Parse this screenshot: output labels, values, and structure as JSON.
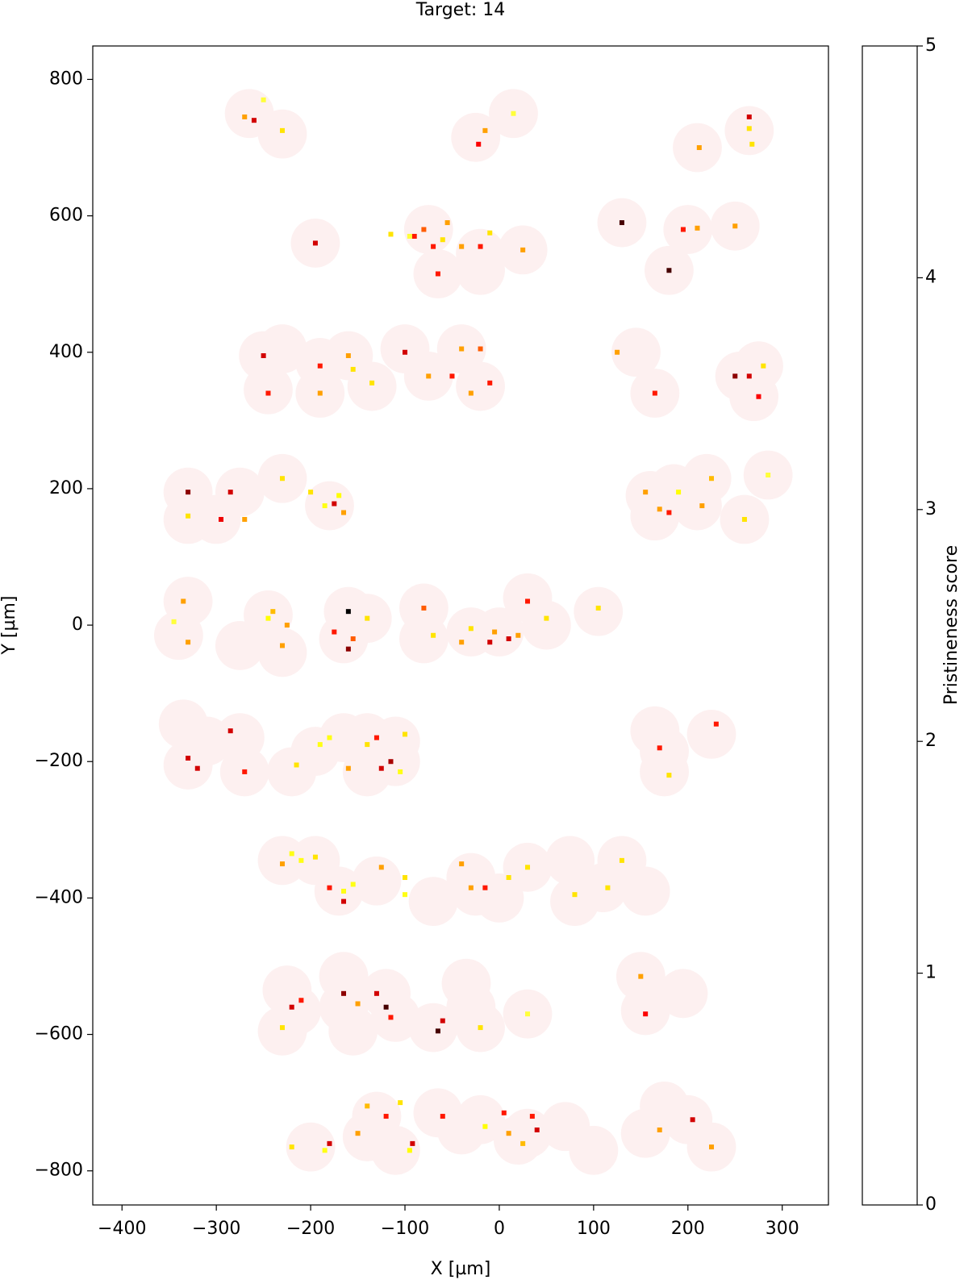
{
  "chart_data": {
    "type": "scatter",
    "title": "Target: 14",
    "x_label": "X [µm]",
    "y_label": "Y [µm]",
    "xlim": [
      -431,
      349
    ],
    "ylim": [
      -850,
      849
    ],
    "xticks": [
      {
        "value": -400,
        "label": "−400"
      },
      {
        "value": -300,
        "label": "−300"
      },
      {
        "value": -200,
        "label": "−200"
      },
      {
        "value": -100,
        "label": "−100"
      },
      0,
      100,
      200,
      300
    ],
    "yticks": [
      {
        "value": -800,
        "label": "−800"
      },
      {
        "value": -600,
        "label": "−600"
      },
      {
        "value": -400,
        "label": "−400"
      },
      {
        "value": -200,
        "label": "−200"
      },
      0,
      200,
      400,
      600,
      800
    ],
    "colorbar": {
      "label": "Pristineness score",
      "colormap": "hot_r",
      "clim": [
        0,
        5
      ],
      "ticks": [
        0,
        1,
        2,
        3,
        4,
        5
      ]
    },
    "regions": {
      "color": "#fdf0f0",
      "radius": 26,
      "x": [
        -265,
        -230,
        -25,
        15,
        210,
        265,
        -195,
        -75,
        -65,
        -20,
        -20,
        25,
        130,
        180,
        200,
        250,
        -250,
        -230,
        -245,
        -190,
        -190,
        -160,
        -135,
        -100,
        -75,
        -40,
        -20,
        145,
        165,
        255,
        275,
        270,
        -330,
        -330,
        -300,
        -275,
        -230,
        -180,
        160,
        165,
        185,
        210,
        220,
        260,
        285,
        -330,
        -340,
        -275,
        -245,
        -230,
        -160,
        -165,
        -140,
        -80,
        -80,
        -30,
        0,
        30,
        50,
        105,
        -335,
        -330,
        -310,
        -275,
        -270,
        -220,
        -195,
        -165,
        -140,
        -140,
        -110,
        -110,
        165,
        175,
        175,
        225,
        -230,
        -195,
        -170,
        -130,
        -70,
        -30,
        -25,
        0,
        30,
        75,
        80,
        110,
        130,
        155,
        -225,
        -215,
        -230,
        -165,
        -165,
        -155,
        -120,
        -110,
        -70,
        -35,
        -30,
        -20,
        30,
        150,
        155,
        195,
        -200,
        -140,
        -130,
        -110,
        -65,
        -40,
        -20,
        20,
        30,
        70,
        100,
        155,
        175,
        200,
        225
      ],
      "y": [
        750,
        720,
        715,
        750,
        700,
        725,
        560,
        580,
        515,
        545,
        520,
        550,
        590,
        520,
        580,
        585,
        395,
        405,
        345,
        385,
        340,
        395,
        350,
        405,
        365,
        405,
        350,
        400,
        340,
        365,
        380,
        335,
        195,
        155,
        155,
        195,
        215,
        175,
        190,
        160,
        200,
        175,
        215,
        155,
        220,
        35,
        -15,
        -30,
        15,
        -40,
        20,
        -20,
        10,
        25,
        -20,
        -10,
        -10,
        40,
        0,
        20,
        -145,
        -205,
        -170,
        -165,
        -215,
        -215,
        -185,
        -165,
        -165,
        -215,
        -200,
        -170,
        -155,
        -185,
        -215,
        -160,
        -345,
        -345,
        -390,
        -375,
        -405,
        -370,
        -390,
        -400,
        -355,
        -345,
        -405,
        -385,
        -345,
        -390,
        -535,
        -565,
        -595,
        -515,
        -560,
        -595,
        -540,
        -575,
        -590,
        -525,
        -560,
        -590,
        -570,
        -515,
        -565,
        -540,
        -765,
        -750,
        -720,
        -770,
        -715,
        -740,
        -725,
        -755,
        -745,
        -735,
        -770,
        -745,
        -705,
        -725,
        -765
      ]
    },
    "points": {
      "x": [
        -270,
        -260,
        -250,
        -230,
        -22,
        -15,
        15,
        212,
        265,
        265,
        268,
        -195,
        -90,
        -70,
        -80,
        -60,
        -55,
        -95,
        -115,
        -65,
        -40,
        -20,
        -10,
        25,
        130,
        180,
        195,
        210,
        250,
        -250,
        -245,
        -190,
        -190,
        -160,
        -155,
        -135,
        -100,
        -75,
        -50,
        -30,
        -40,
        -20,
        -10,
        125,
        165,
        250,
        265,
        275,
        280,
        -330,
        -330,
        -295,
        -285,
        -270,
        -230,
        -200,
        -185,
        -175,
        -170,
        -165,
        155,
        170,
        180,
        190,
        215,
        225,
        260,
        285,
        -335,
        -345,
        -330,
        -245,
        -240,
        -230,
        -225,
        -160,
        -175,
        -155,
        -160,
        -140,
        -80,
        -70,
        -40,
        -30,
        -10,
        -5,
        10,
        20,
        30,
        50,
        105,
        -330,
        -320,
        -285,
        -270,
        -215,
        -190,
        -180,
        -160,
        -140,
        -130,
        -125,
        -115,
        -105,
        -100,
        170,
        180,
        230,
        -230,
        -220,
        -210,
        -195,
        -180,
        -165,
        -155,
        -165,
        -125,
        -100,
        -100,
        -40,
        -30,
        -15,
        10,
        30,
        80,
        115,
        130,
        -220,
        -210,
        -230,
        -165,
        -150,
        -130,
        -120,
        -115,
        -65,
        -60,
        -20,
        30,
        150,
        155,
        -220,
        -185,
        -180,
        -150,
        -140,
        -120,
        -105,
        -95,
        -92,
        -60,
        -15,
        5,
        10,
        25,
        35,
        40,
        170,
        205,
        225
      ],
      "y": [
        745,
        740,
        770,
        725,
        705,
        725,
        750,
        700,
        745,
        728,
        705,
        560,
        570,
        555,
        580,
        565,
        590,
        570,
        573,
        515,
        555,
        555,
        575,
        550,
        590,
        520,
        580,
        582,
        585,
        395,
        340,
        380,
        340,
        395,
        375,
        355,
        400,
        365,
        365,
        340,
        405,
        405,
        355,
        400,
        340,
        365,
        365,
        335,
        380,
        195,
        160,
        155,
        195,
        155,
        215,
        195,
        175,
        178,
        190,
        165,
        195,
        170,
        165,
        195,
        175,
        215,
        155,
        220,
        35,
        5,
        -25,
        10,
        20,
        -30,
        0,
        20,
        -10,
        -20,
        -35,
        10,
        25,
        -15,
        -25,
        -5,
        -25,
        -10,
        -20,
        -15,
        35,
        10,
        25,
        -195,
        -210,
        -155,
        -215,
        -205,
        -175,
        -165,
        -210,
        -175,
        -165,
        -210,
        -200,
        -215,
        -160,
        -180,
        -220,
        -145,
        -350,
        -335,
        -345,
        -340,
        -385,
        -390,
        -380,
        -405,
        -355,
        -370,
        -395,
        -350,
        -385,
        -385,
        -370,
        -355,
        -395,
        -385,
        -345,
        -560,
        -550,
        -590,
        -540,
        -555,
        -540,
        -560,
        -575,
        -595,
        -580,
        -590,
        -570,
        -515,
        -570,
        -765,
        -770,
        -760,
        -745,
        -705,
        -720,
        -700,
        -770,
        -760,
        -720,
        -735,
        -715,
        -745,
        -760,
        -720,
        -740,
        -740,
        -725,
        -765
      ],
      "values": [
        2,
        3.5,
        1,
        1.5,
        3.2,
        2,
        1,
        2,
        3.5,
        1.5,
        1.5,
        3.5,
        3,
        3,
        2.5,
        1.5,
        2,
        1,
        1.5,
        3,
        2,
        3,
        1.5,
        2,
        4.5,
        4.5,
        3,
        2,
        2,
        3.5,
        3,
        3,
        2,
        2,
        1.5,
        1.5,
        3.5,
        2,
        3,
        2,
        2,
        2.5,
        3,
        2,
        3,
        4,
        3.5,
        3.2,
        1.5,
        4,
        1.5,
        3.3,
        3.5,
        2,
        1.5,
        1.5,
        1.2,
        3.5,
        1.3,
        2,
        2,
        2,
        3,
        1.3,
        2,
        1.8,
        1.5,
        1,
        2,
        1,
        2,
        1.3,
        1.8,
        2,
        2,
        5,
        3,
        2.5,
        4,
        1.5,
        2.5,
        1.5,
        2,
        1.5,
        3.5,
        2,
        3.5,
        2,
        3,
        1.5,
        1.5,
        3.5,
        3.5,
        3.5,
        3,
        1.5,
        1.2,
        1.2,
        2,
        1.5,
        3,
        3.5,
        3.8,
        1.2,
        1.5,
        3,
        1.5,
        3,
        2,
        1.2,
        1.2,
        1.5,
        3,
        1.2,
        1.2,
        3.5,
        2,
        1.5,
        1.2,
        2,
        2,
        3,
        1.5,
        1.5,
        1.5,
        1.5,
        1.5,
        3.5,
        3,
        1.5,
        4,
        2,
        3.5,
        4.5,
        3,
        4.5,
        3.5,
        1.5,
        1,
        2,
        3.2,
        1.5,
        1.2,
        3.5,
        2,
        1.8,
        3,
        1.5,
        1.3,
        3.5,
        3,
        1.3,
        3,
        2,
        1.8,
        3,
        3.5,
        2,
        3.5,
        2
      ]
    }
  }
}
